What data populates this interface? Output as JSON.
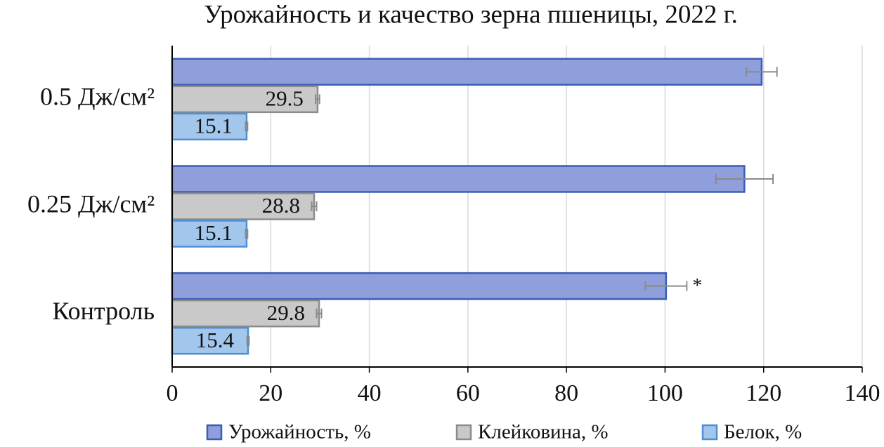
{
  "chart_data": {
    "type": "hbar",
    "title": "Урожайность и качество зерна пшеницы, 2022 г.",
    "categories": [
      "0.5 Дж/см²",
      "0.25 Дж/см²",
      "Контроль"
    ],
    "series": [
      {
        "name": "Урожайность, %",
        "color": "#8f9fdc",
        "edge_color": "#3d5db5",
        "show_labels": false,
        "values": [
          119.6,
          116.1,
          100.2
        ],
        "errors": [
          3.1,
          5.8,
          4.2
        ]
      },
      {
        "name": "Клейковина, %",
        "color": "#c9c9c9",
        "edge_color": "#8c8c8c",
        "show_labels": true,
        "values": [
          29.5,
          28.8,
          29.8
        ],
        "errors": [
          0.4,
          0.5,
          0.5
        ]
      },
      {
        "name": "Белок, %",
        "color": "#a3c7ec",
        "edge_color": "#4d8fd2",
        "show_labels": true,
        "values": [
          15.1,
          15.1,
          15.4
        ],
        "errors": [
          0.2,
          0.2,
          0.2
        ]
      }
    ],
    "annotation": "*",
    "xlim": [
      0,
      140
    ],
    "xticks": [
      0,
      20,
      40,
      60,
      80,
      100,
      120,
      140
    ],
    "grid": true,
    "legend": "bottom"
  }
}
